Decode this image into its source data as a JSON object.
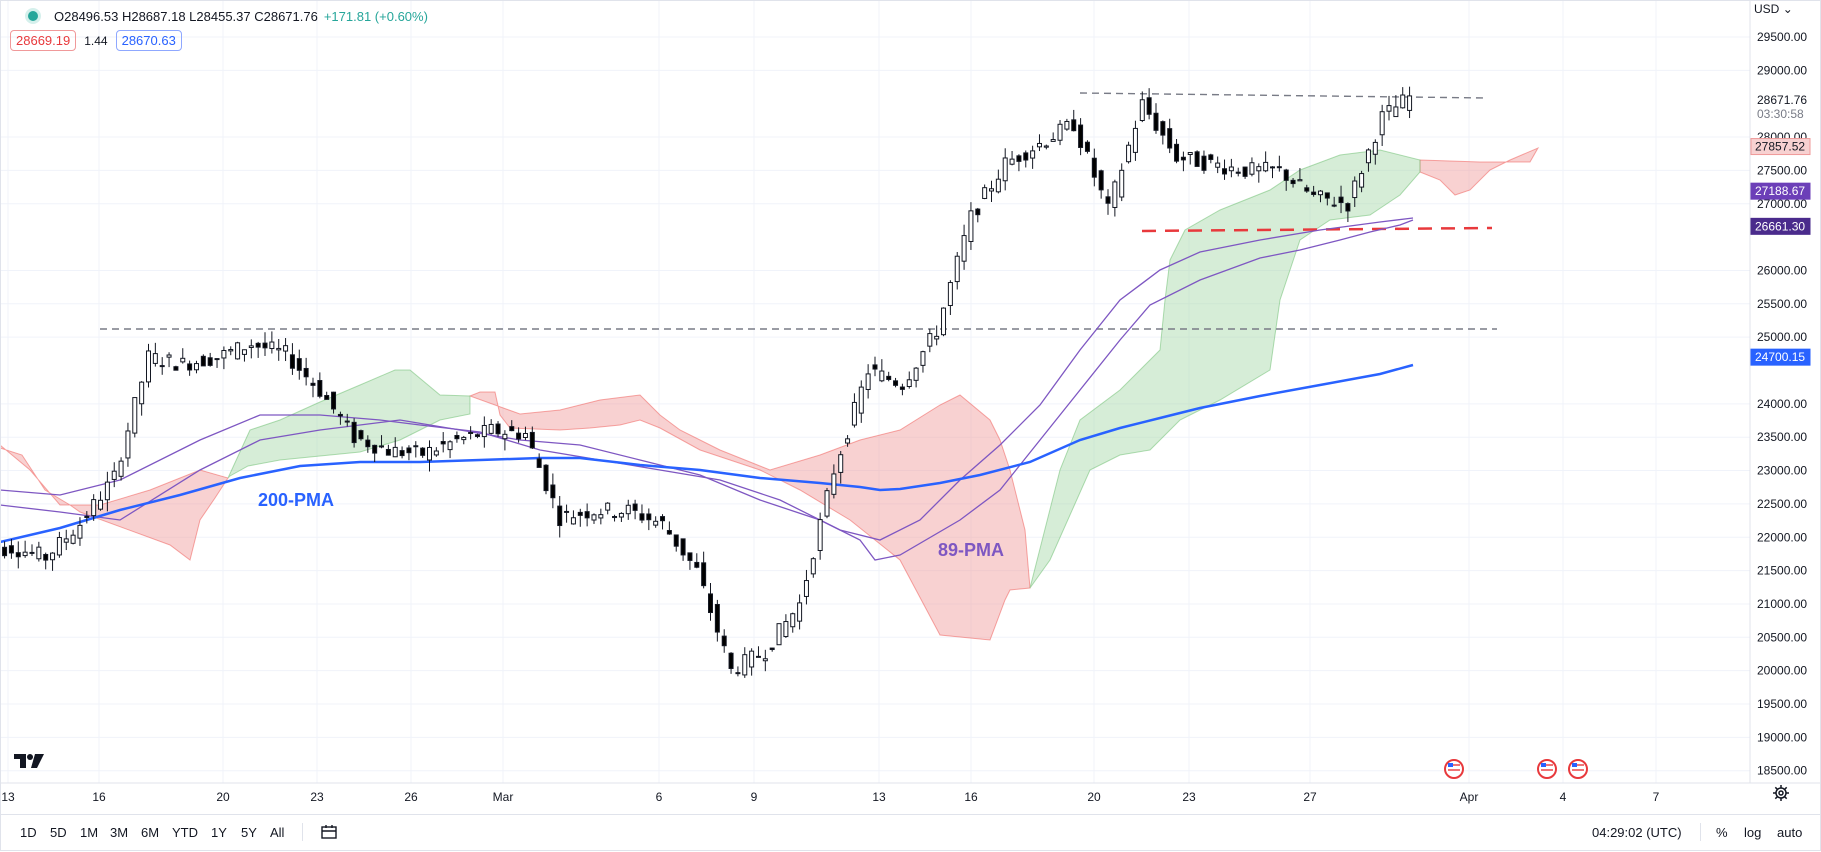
{
  "header": {
    "ohlc": "O28496.53 H28687.18 L28455.37 C28671.76",
    "change": "+171.81 (+0.60%)",
    "bid": "28669.19",
    "spread": "1.44",
    "ask": "28670.63",
    "currency": "USD"
  },
  "axis": {
    "right_ticks": [
      "29500.00",
      "29000.00",
      "28000.00",
      "27500.00",
      "27000.00",
      "26000.00",
      "25500.00",
      "25000.00",
      "24000.00",
      "23500.00",
      "23000.00",
      "22500.00",
      "22000.00",
      "21500.00",
      "21000.00",
      "20500.00",
      "20000.00",
      "19500.00",
      "19000.00",
      "18500.00"
    ],
    "bottom_ticks": [
      "13",
      "16",
      "20",
      "23",
      "26",
      "Mar",
      "6",
      "9",
      "13",
      "16",
      "20",
      "23",
      "27",
      "Apr",
      "4",
      "7"
    ]
  },
  "price_labels": {
    "last_price": "28671.76",
    "countdown": "03:30:58",
    "ichimoku_top": "27857.52",
    "ma89_value": "27188.67",
    "ma_slow_value": "26661.30",
    "ma200_value": "24700.15"
  },
  "annotations": {
    "ma200_label": "200-PMA",
    "ma89_label": "89-PMA"
  },
  "bottom_bar": {
    "ranges": [
      "1D",
      "5D",
      "1M",
      "3M",
      "6M",
      "YTD",
      "1Y",
      "5Y",
      "All"
    ],
    "clock": "04:29:02 (UTC)",
    "percent": "%",
    "log": "log",
    "auto": "auto"
  },
  "icons": [
    "tradingview-logo-icon",
    "calendar-range-icon",
    "gear-icon",
    "us-flag-event-icon",
    "chevron-down-icon"
  ],
  "colors": {
    "up_candle": "#ffffff",
    "down_candle": "#000000",
    "ma200": "#2962ff",
    "ma89": "#7e57c2",
    "cloud_bull": "#a5d6a7",
    "cloud_bear": "#ef9a9a",
    "support_line": "#e8393c",
    "resistance_line": "#787b86"
  },
  "chart_data": {
    "type": "candlestick",
    "x_ticks": [
      "13",
      "16",
      "20",
      "23",
      "26",
      "Mar",
      "6",
      "9",
      "13",
      "16",
      "20",
      "23",
      "27",
      "Apr",
      "4",
      "7"
    ],
    "ylim": [
      18500,
      29700
    ],
    "series": [
      {
        "name": "200-PMA",
        "x": [
          "13",
          "16",
          "20",
          "23",
          "26",
          "Mar",
          "6",
          "9",
          "13",
          "16",
          "20",
          "23",
          "27"
        ],
        "values": [
          22050,
          22550,
          22900,
          23150,
          23250,
          23250,
          23150,
          23000,
          22800,
          23000,
          23550,
          24000,
          24450
        ]
      },
      {
        "name": "89-PMA",
        "x": [
          "13",
          "16",
          "20",
          "23",
          "26",
          "Mar",
          "6",
          "9",
          "13",
          "16",
          "20",
          "23",
          "27"
        ],
        "values": [
          22000,
          22150,
          22850,
          23600,
          23450,
          23350,
          23000,
          22450,
          21750,
          22400,
          24000,
          25100,
          25900
        ]
      }
    ],
    "candles_close": [
      21850,
      21700,
      22200,
      22900,
      24700,
      24600,
      24700,
      24900,
      24750,
      24200,
      23500,
      23300,
      23250,
      23450,
      23600,
      23550,
      22300,
      22400,
      22400,
      22200,
      21500,
      20000,
      20300,
      21000,
      23000,
      24500,
      24300,
      25100,
      26800,
      27600,
      27900,
      28200,
      26900,
      28500,
      27700,
      27600,
      27500,
      27500,
      27100,
      27000,
      28300,
      28671.76
    ],
    "levels": [
      {
        "name": "resistance",
        "value": 28800
      },
      {
        "name": "support",
        "value": 26661.3
      },
      {
        "name": "range-top",
        "value": 25250
      }
    ]
  }
}
